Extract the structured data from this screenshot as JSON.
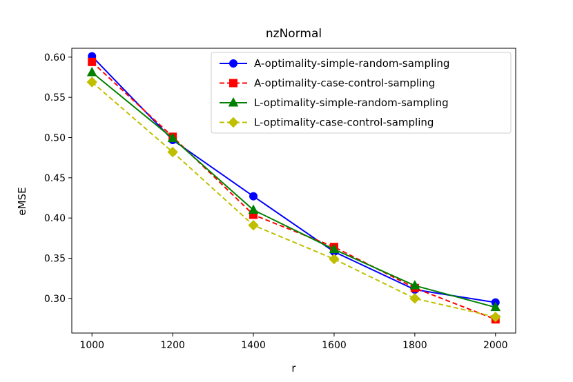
{
  "chart_data": {
    "type": "line",
    "title": "nzNormal",
    "xlabel": "r",
    "ylabel": "eMSE",
    "x": [
      1000,
      1200,
      1400,
      1600,
      1800,
      2000
    ],
    "x_ticks": [
      "1000",
      "1200",
      "1400",
      "1600",
      "1800",
      "2000"
    ],
    "y_ticks": [
      "0.30",
      "0.35",
      "0.40",
      "0.45",
      "0.50",
      "0.55",
      "0.60"
    ],
    "y_tick_values": [
      0.3,
      0.35,
      0.4,
      0.45,
      0.5,
      0.55,
      0.6
    ],
    "xlim": [
      950,
      2050
    ],
    "ylim": [
      0.257,
      0.611
    ],
    "grid": false,
    "legend_position": "top-right",
    "series": [
      {
        "name": "A-optimality-simple-random-sampling",
        "color": "#0000ff",
        "line": "solid",
        "marker": "circle",
        "values": [
          0.601,
          0.497,
          0.427,
          0.358,
          0.311,
          0.295
        ]
      },
      {
        "name": "A-optimality-case-control-sampling",
        "color": "#ff0000",
        "line": "dashed",
        "marker": "square",
        "values": [
          0.594,
          0.501,
          0.404,
          0.364,
          0.313,
          0.274
        ]
      },
      {
        "name": "L-optimality-simple-random-sampling",
        "color": "#008000",
        "line": "solid",
        "marker": "triangle",
        "values": [
          0.581,
          0.499,
          0.41,
          0.361,
          0.316,
          0.289
        ]
      },
      {
        "name": "L-optimality-case-control-sampling",
        "color": "#bfbf00",
        "line": "dashed",
        "marker": "diamond",
        "values": [
          0.569,
          0.482,
          0.391,
          0.349,
          0.3,
          0.277
        ]
      }
    ]
  }
}
